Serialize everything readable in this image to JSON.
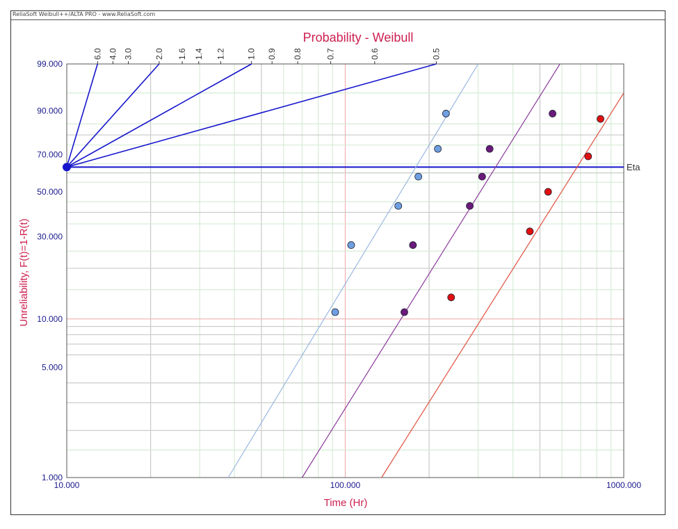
{
  "source_label": "ReliaSoft Weibull++/ALTA PRO - www.ReliaSoft.com",
  "colors": {
    "title": "#cc1f4f",
    "axis_label": "#cc1f4f",
    "tick_label": "#1a1a8c",
    "beta_lines": "#1515cc",
    "grid_green": "#d6ecd6",
    "grid_gray": "#c8c8c8",
    "grid_red": "#f0b0b0",
    "series_blue": "#6f9fe0",
    "series_blue_line": "#9ab8e0",
    "series_purple": "#6a1a7a",
    "series_purple_line": "#8a3a9a",
    "series_red": "#e01010",
    "series_red_line": "#e05040"
  },
  "chart_data": {
    "type": "scatter",
    "title": "Probability - Weibull",
    "xlabel": "Time (Hr)",
    "ylabel": "Unreliability, F(t)=1-R(t)",
    "x_scale": "log",
    "y_scale": "weibull",
    "xlim": [
      10,
      1000
    ],
    "ylim": [
      1,
      99
    ],
    "x_ticks": [
      "10.000",
      "100.000",
      "1000.000"
    ],
    "y_ticks": [
      {
        "value": 99,
        "label": "99.000"
      },
      {
        "value": 90,
        "label": "90.000"
      },
      {
        "value": 70,
        "label": "70.000"
      },
      {
        "value": 50,
        "label": "50.000"
      },
      {
        "value": 30,
        "label": "30.000"
      },
      {
        "value": 10,
        "label": "10.000"
      },
      {
        "value": 5,
        "label": "5.000"
      },
      {
        "value": 1,
        "label": "1.000"
      }
    ],
    "eta_label": "Eta",
    "beta_scale": [
      "6.0",
      "4.0",
      "3.0",
      "2.0",
      "1.6",
      "1.4",
      "1.2",
      "1.0",
      "0.9",
      "0.8",
      "0.7",
      "0.6",
      "0.5"
    ],
    "beta_lines": [
      "6.0",
      "2.0",
      "1.0",
      "0.5"
    ],
    "grid": true,
    "legend": "none",
    "series": [
      {
        "color_key": "blue",
        "fit_line": {
          "from": [
            38,
            1
          ],
          "to": [
            300,
            99
          ]
        },
        "points": [
          {
            "x": 92,
            "y": 11
          },
          {
            "x": 105,
            "y": 27
          },
          {
            "x": 155,
            "y": 43
          },
          {
            "x": 183,
            "y": 58
          },
          {
            "x": 215,
            "y": 73
          },
          {
            "x": 230,
            "y": 89
          }
        ]
      },
      {
        "color_key": "purple",
        "fit_line": {
          "from": [
            70,
            1
          ],
          "to": [
            590,
            99
          ]
        },
        "points": [
          {
            "x": 163,
            "y": 11
          },
          {
            "x": 175,
            "y": 27
          },
          {
            "x": 280,
            "y": 43
          },
          {
            "x": 310,
            "y": 58
          },
          {
            "x": 330,
            "y": 73
          },
          {
            "x": 555,
            "y": 89
          }
        ]
      },
      {
        "color_key": "red",
        "fit_line": {
          "from": [
            135,
            1
          ],
          "to": [
            1000,
            95
          ]
        },
        "points": [
          {
            "x": 240,
            "y": 13.5
          },
          {
            "x": 460,
            "y": 32
          },
          {
            "x": 535,
            "y": 50
          },
          {
            "x": 745,
            "y": 69
          },
          {
            "x": 825,
            "y": 87
          }
        ]
      }
    ]
  }
}
